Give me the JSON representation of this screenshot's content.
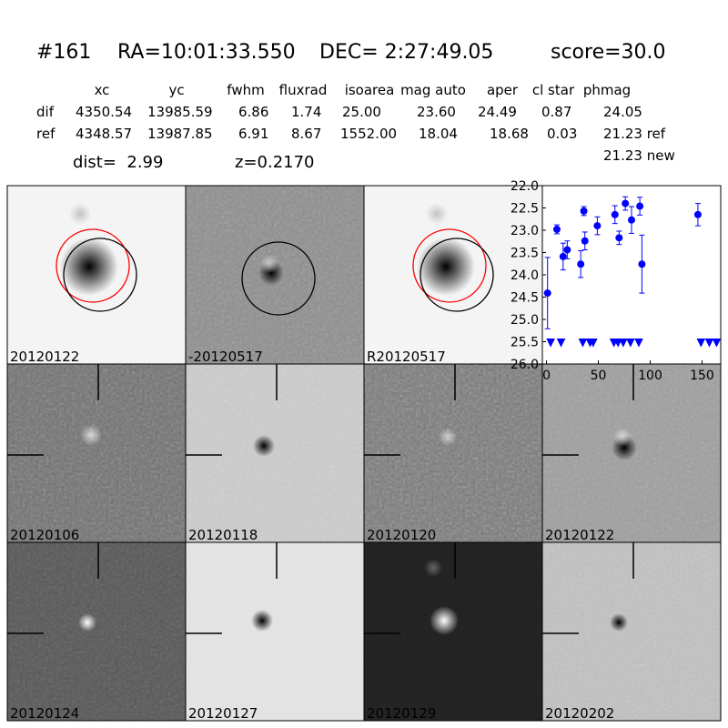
{
  "header": {
    "id": "#161",
    "ra": "RA=10:01:33.550",
    "dec": "DEC= 2:27:49.05",
    "score": "score=30.0"
  },
  "table": {
    "columns": [
      "xc",
      "yc",
      "fwhm",
      "fluxrad",
      "isoarea",
      "mag auto",
      "aper",
      "cl star",
      "phmag"
    ],
    "rows": [
      [
        "dif",
        "4350.54",
        "13985.59",
        "6.86",
        "1.74",
        "25.00",
        "23.60",
        "24.49",
        "0.87",
        "24.05"
      ],
      [
        "ref",
        "4348.57",
        "13987.85",
        "6.91",
        "8.67",
        "1552.00",
        "18.04",
        "18.68",
        "0.03",
        "21.23 ref"
      ]
    ],
    "extra": "21.23 new"
  },
  "dist": "dist=  2.99",
  "redshift": "z=0.2170",
  "panels": [
    {
      "label": "20120122"
    },
    {
      "label": "-20120517"
    },
    {
      "label": "R20120517"
    },
    {
      "label": "20120106"
    },
    {
      "label": "20120118"
    },
    {
      "label": "20120120"
    },
    {
      "label": "20120122",
      "color": "#ff0000"
    },
    {
      "label": "20120124"
    },
    {
      "label": "20120127"
    },
    {
      "label": "20120129"
    },
    {
      "label": "20120202"
    }
  ],
  "chart_data": {
    "type": "errorbar",
    "xlim": [
      -4,
      168
    ],
    "xticks": [
      0,
      50,
      100,
      150
    ],
    "ylim": [
      26,
      22
    ],
    "yticks": [
      {
        "value": 22,
        "label": "22.0"
      },
      {
        "value": 22.5,
        "label": "22.5"
      },
      {
        "value": 23,
        "label": "23.0"
      },
      {
        "value": 23.5,
        "label": "23.5"
      },
      {
        "value": 24,
        "label": "24.0"
      },
      {
        "value": 24.5,
        "label": "24.5"
      },
      {
        "value": 25,
        "label": "25.0"
      },
      {
        "value": 25.5,
        "label": "25.5"
      },
      {
        "value": 26,
        "label": "26.0"
      }
    ],
    "series": [
      {
        "color": "#0000ff",
        "marker": "circle",
        "x": [
          1,
          10,
          16,
          20,
          33,
          36,
          37,
          49,
          66,
          70,
          76,
          82,
          90,
          92,
          146
        ],
        "values": [
          24.41,
          22.98,
          23.59,
          23.44,
          23.76,
          22.57,
          23.24,
          22.9,
          22.65,
          23.17,
          22.4,
          22.77,
          22.46,
          23.76,
          22.65
        ],
        "errors": [
          0.8,
          0.1,
          0.3,
          0.2,
          0.3,
          0.1,
          0.2,
          0.2,
          0.2,
          0.15,
          0.15,
          0.3,
          0.2,
          0.65,
          0.25
        ]
      },
      {
        "color": "#0000ff",
        "marker": "triangle-down",
        "x": [
          4,
          14,
          35,
          42,
          45,
          65,
          69,
          74,
          81,
          89,
          149,
          157,
          164
        ],
        "values": [
          25.5,
          25.5,
          25.5,
          25.5,
          25.5,
          25.5,
          25.5,
          25.5,
          25.5,
          25.5,
          25.5,
          25.5,
          25.5
        ]
      }
    ]
  }
}
